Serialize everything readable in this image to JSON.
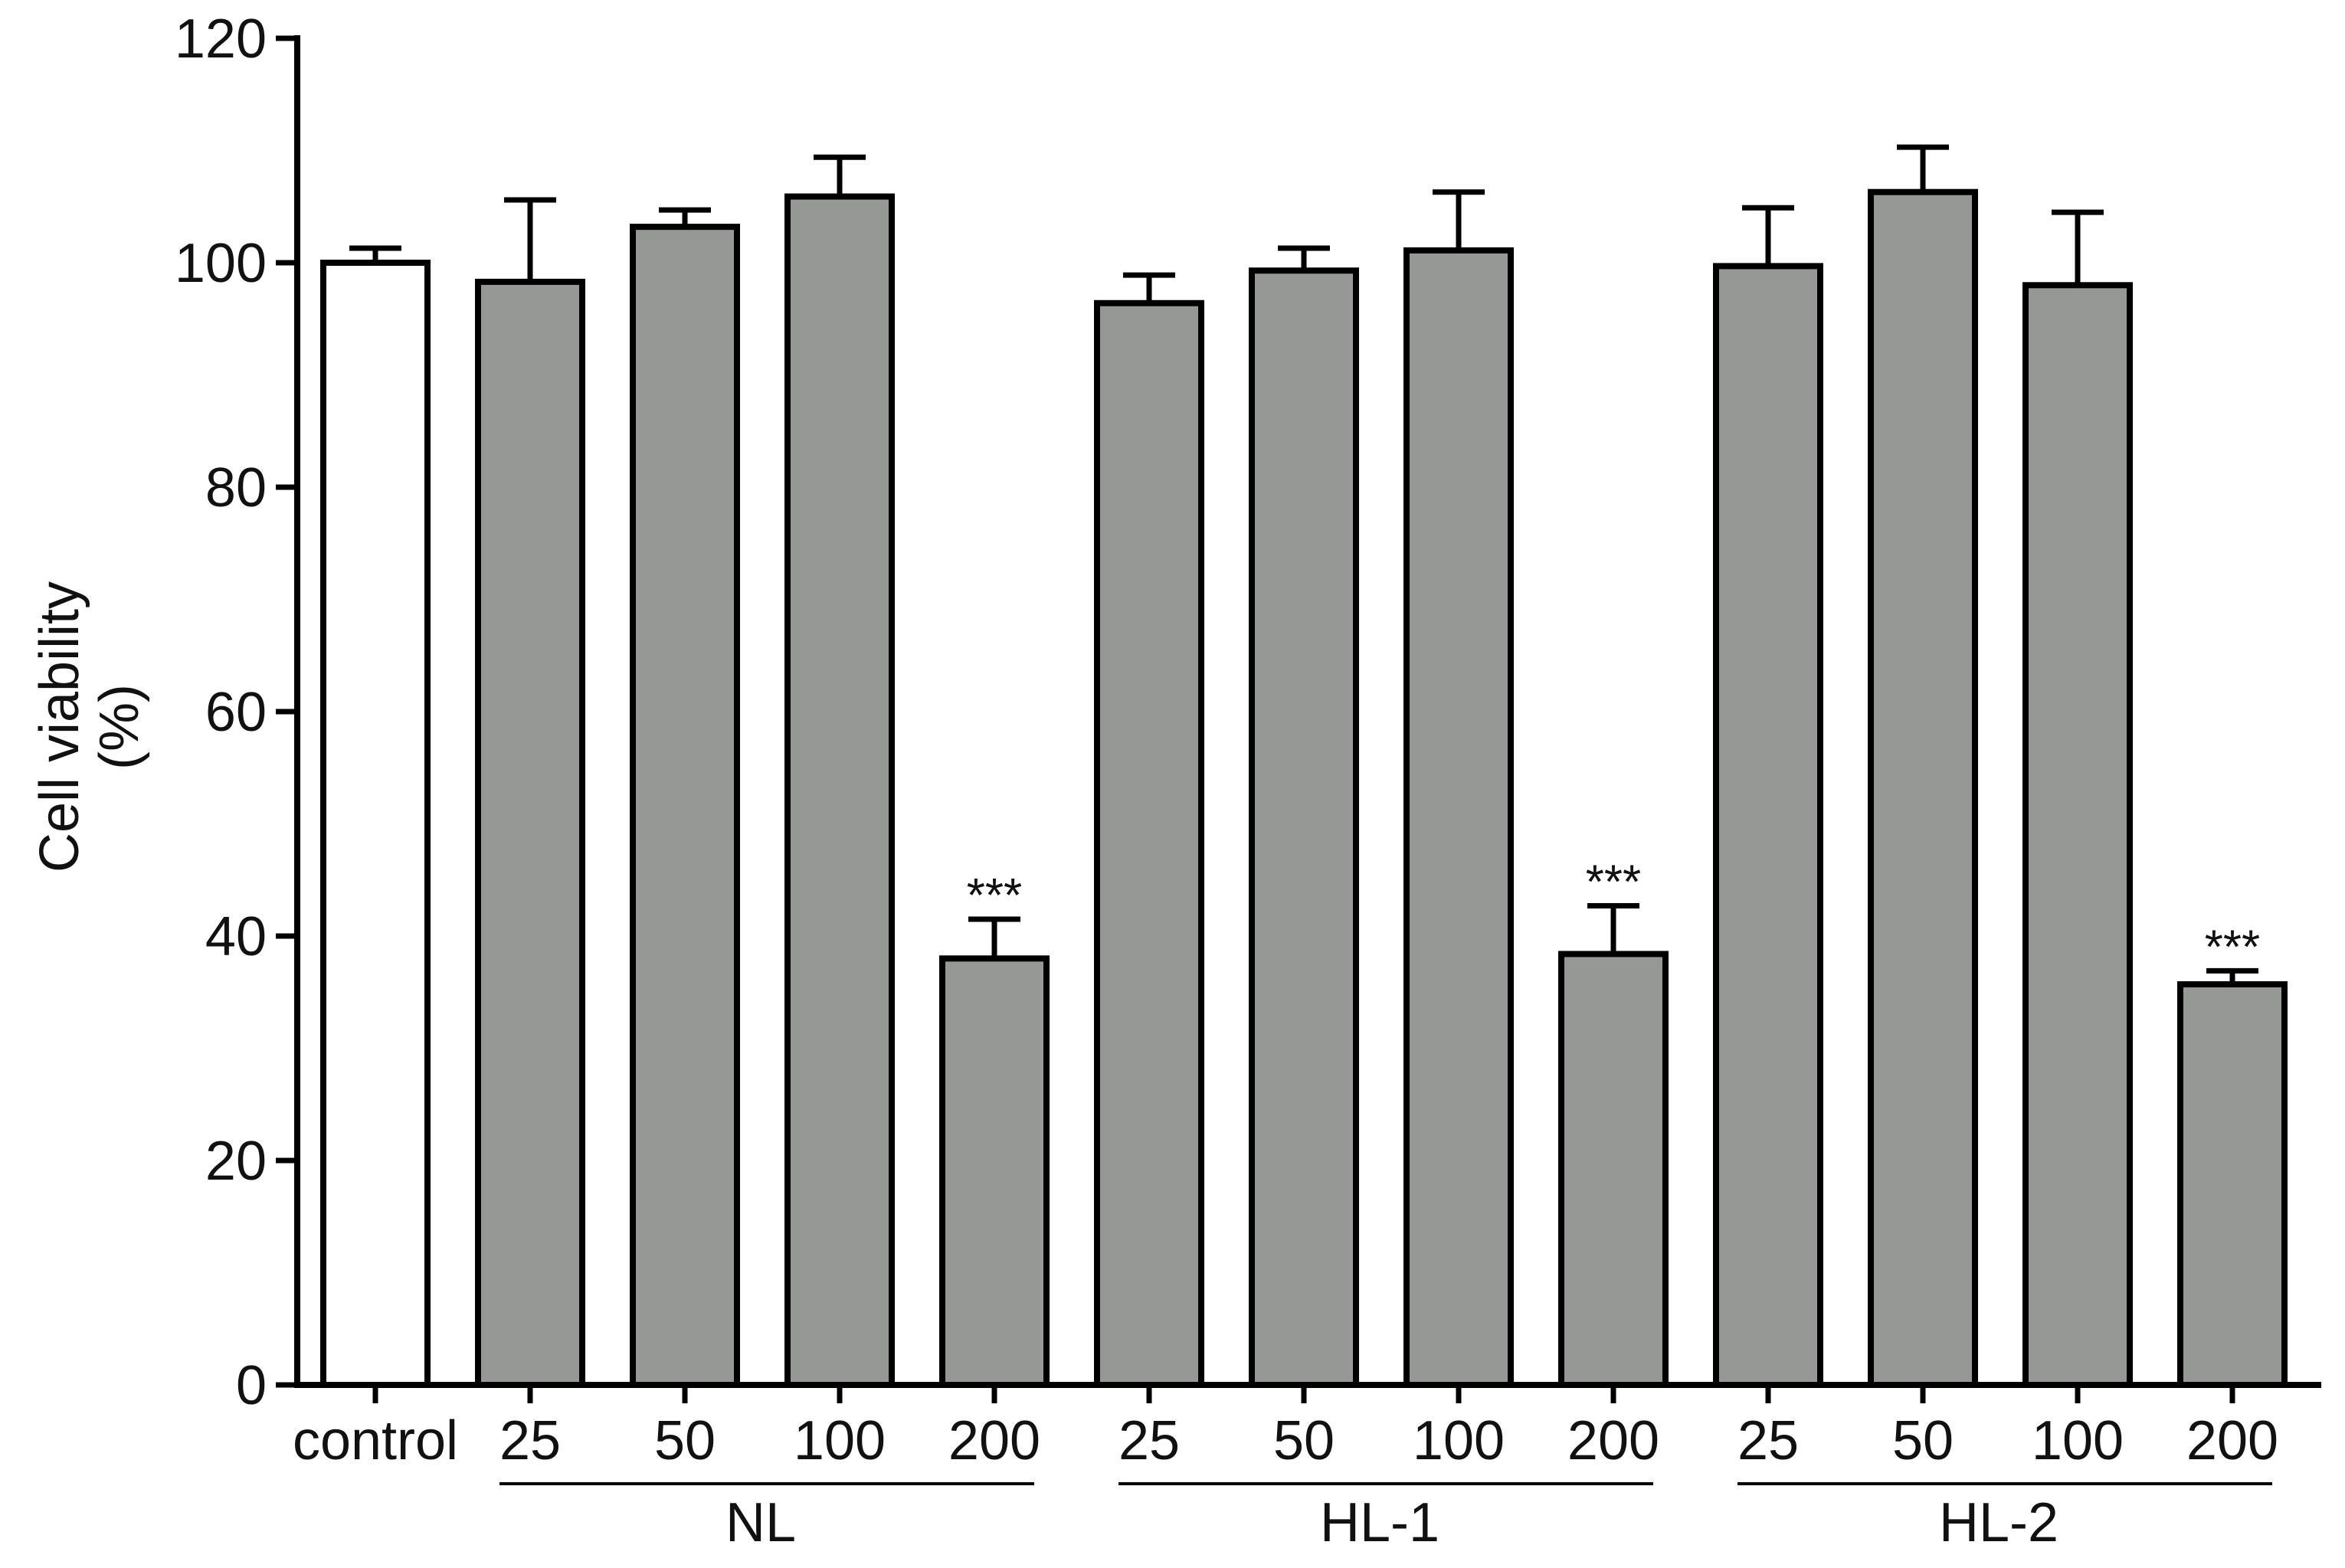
{
  "chart_data": {
    "type": "bar",
    "ylabel_lines": [
      "Cell viability",
      "(%)"
    ],
    "ylim": [
      0,
      120
    ],
    "yticks": [
      0,
      20,
      40,
      60,
      80,
      100,
      120
    ],
    "grid": false,
    "legend": "none",
    "bars": [
      {
        "label": "control",
        "group": "",
        "value": 100.0,
        "error": 1.3,
        "fill": "#ffffff",
        "significance": ""
      },
      {
        "label": "25",
        "group": "NL",
        "value": 98.3,
        "error": 7.3,
        "fill": "#969896",
        "significance": ""
      },
      {
        "label": "50",
        "group": "NL",
        "value": 103.2,
        "error": 1.5,
        "fill": "#969896",
        "significance": ""
      },
      {
        "label": "100",
        "group": "NL",
        "value": 105.9,
        "error": 3.5,
        "fill": "#969896",
        "significance": ""
      },
      {
        "label": "200",
        "group": "NL",
        "value": 38.0,
        "error": 3.5,
        "fill": "#969896",
        "significance": "***"
      },
      {
        "label": "25",
        "group": "HL-1",
        "value": 96.4,
        "error": 2.5,
        "fill": "#969896",
        "significance": ""
      },
      {
        "label": "50",
        "group": "HL-1",
        "value": 99.3,
        "error": 2.0,
        "fill": "#969896",
        "significance": ""
      },
      {
        "label": "100",
        "group": "HL-1",
        "value": 101.1,
        "error": 5.2,
        "fill": "#969896",
        "significance": ""
      },
      {
        "label": "200",
        "group": "HL-1",
        "value": 38.4,
        "error": 4.3,
        "fill": "#969896",
        "significance": "***"
      },
      {
        "label": "25",
        "group": "HL-2",
        "value": 99.7,
        "error": 5.2,
        "fill": "#969896",
        "significance": ""
      },
      {
        "label": "50",
        "group": "HL-2",
        "value": 106.3,
        "error": 4.0,
        "fill": "#969896",
        "significance": ""
      },
      {
        "label": "100",
        "group": "HL-2",
        "value": 98.0,
        "error": 6.5,
        "fill": "#969896",
        "significance": ""
      },
      {
        "label": "200",
        "group": "HL-2",
        "value": 35.7,
        "error": 1.2,
        "fill": "#969896",
        "significance": "***"
      }
    ],
    "groups": [
      "NL",
      "HL-1",
      "HL-2"
    ]
  }
}
